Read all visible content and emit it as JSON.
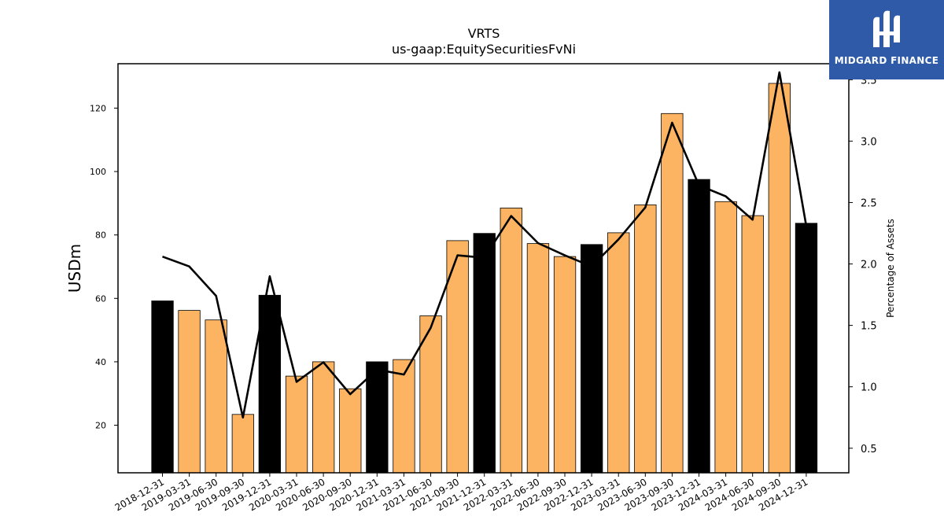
{
  "chart_data": {
    "type": "bar",
    "title": "VRTS",
    "subtitle": "us-gaap:EquitySecuritiesFvNi",
    "ylabel": "USDm",
    "y2label": "Percentage of Assets",
    "ylim": [
      5,
      134
    ],
    "y2lim": [
      0.3,
      3.63
    ],
    "yticks": [
      20,
      40,
      60,
      80,
      100,
      120
    ],
    "y2ticks": [
      0.5,
      1.0,
      1.5,
      2.0,
      2.5,
      3.0,
      3.5
    ],
    "categories": [
      "2018-12-31",
      "2019-03-31",
      "2019-06-30",
      "2019-09-30",
      "2019-12-31",
      "2020-03-31",
      "2020-06-30",
      "2020-09-30",
      "2020-12-31",
      "2021-03-31",
      "2021-06-30",
      "2021-09-30",
      "2021-12-31",
      "2022-03-31",
      "2022-06-30",
      "2022-09-30",
      "2022-12-31",
      "2023-03-31",
      "2023-06-30",
      "2023-09-30",
      "2023-12-31",
      "2024-03-31",
      "2024-06-30",
      "2024-09-30",
      "2024-12-31"
    ],
    "series": [
      {
        "type": "bar",
        "values": [
          59.2,
          56.2,
          53.2,
          23.4,
          61.0,
          35.5,
          40.0,
          31.5,
          40.0,
          40.7,
          54.5,
          78.2,
          80.5,
          88.5,
          77.3,
          73.2,
          77.0,
          80.7,
          89.5,
          118.3,
          97.5,
          90.5,
          86.1,
          127.8,
          83.7
        ],
        "colors": [
          "#000000",
          "#fdb462",
          "#fdb462",
          "#fdb462",
          "#000000",
          "#fdb462",
          "#fdb462",
          "#fdb462",
          "#000000",
          "#fdb462",
          "#fdb462",
          "#fdb462",
          "#000000",
          "#fdb462",
          "#fdb462",
          "#fdb462",
          "#000000",
          "#fdb462",
          "#fdb462",
          "#fdb462",
          "#000000",
          "#fdb462",
          "#fdb462",
          "#fdb462",
          "#000000"
        ]
      },
      {
        "type": "line",
        "axis": "right",
        "color": "#000000",
        "values": [
          2.06,
          1.98,
          1.74,
          0.75,
          1.9,
          1.04,
          1.2,
          0.94,
          1.14,
          1.1,
          1.48,
          2.07,
          2.05,
          2.39,
          2.17,
          2.07,
          1.98,
          2.2,
          2.46,
          3.15,
          2.64,
          2.55,
          2.36,
          3.56,
          2.31
        ]
      }
    ],
    "colors": {
      "highlight": "#000000",
      "bar": "#fdb462",
      "line": "#000000"
    }
  },
  "logo": {
    "brand": "MIDGARD FINANCE"
  }
}
